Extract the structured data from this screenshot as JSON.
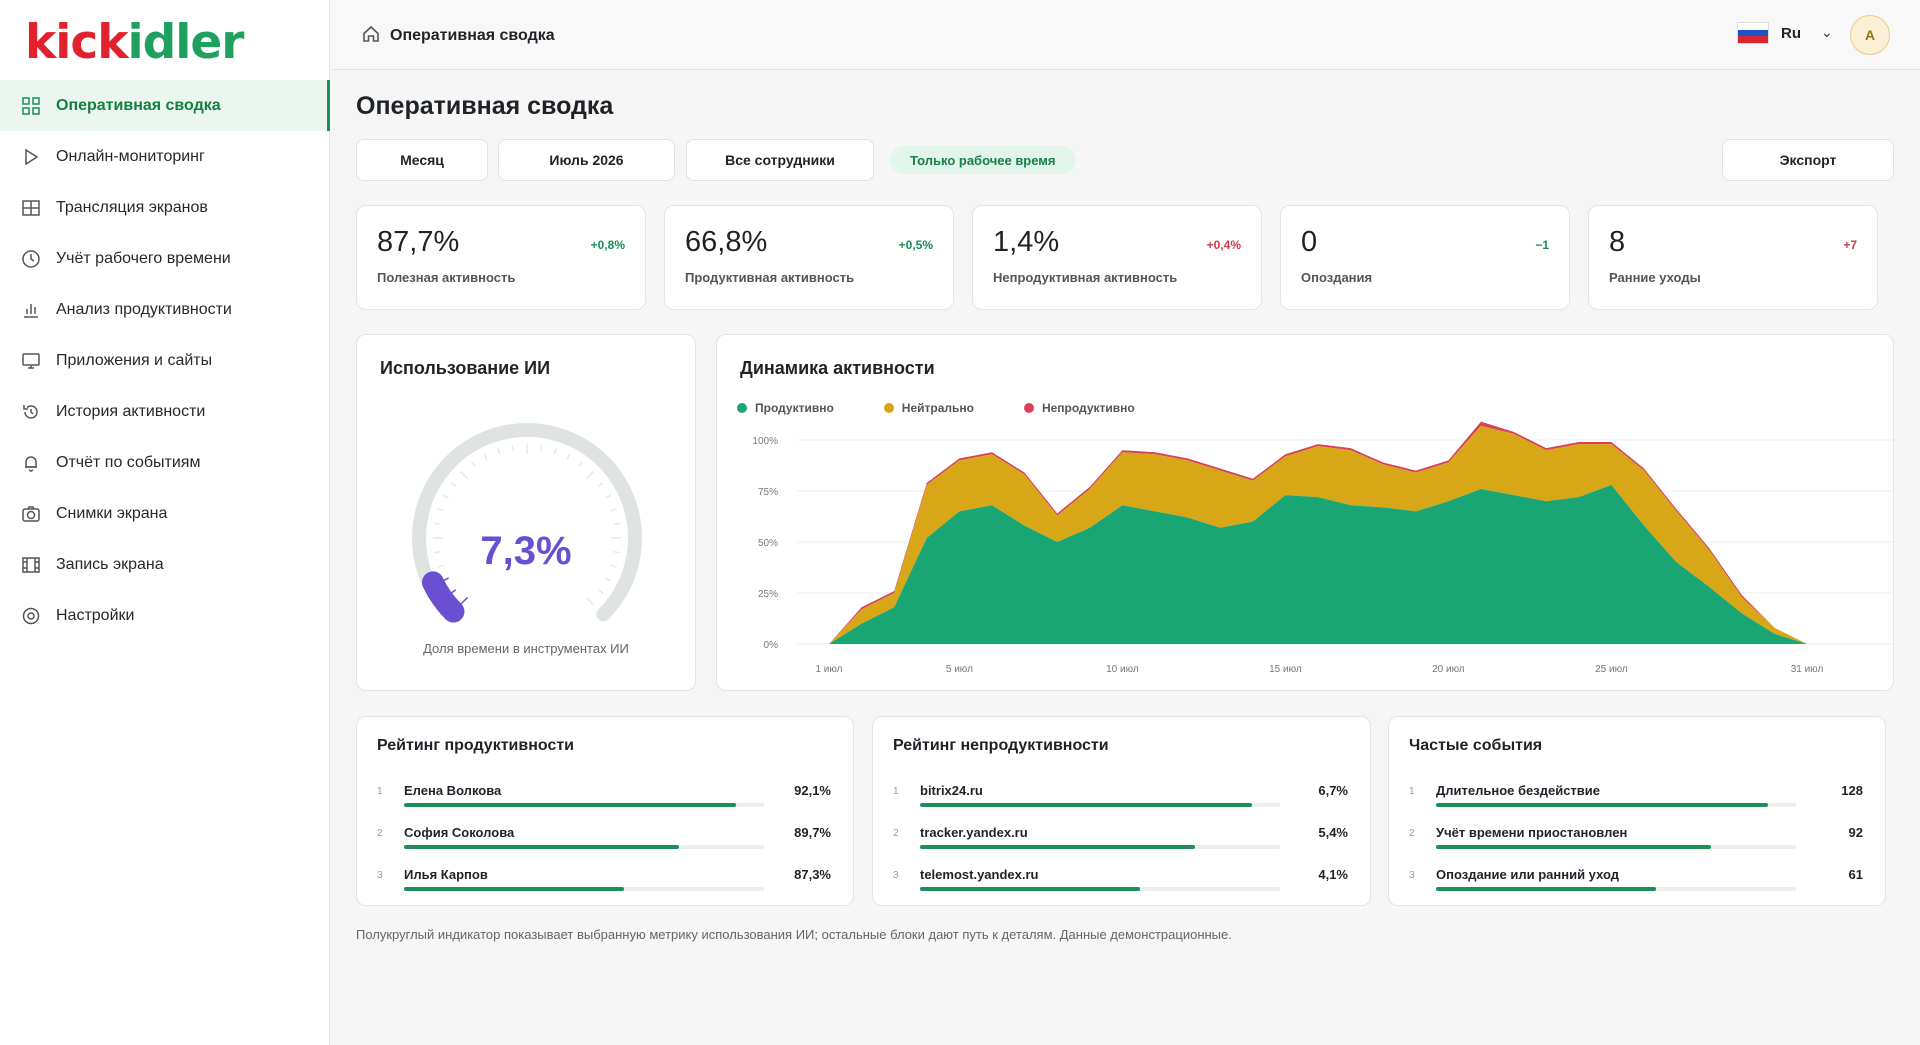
{
  "logo": {
    "part1": "kick",
    "part2": "idler"
  },
  "sidebar": {
    "items": [
      {
        "label": "Оперативная сводка",
        "icon": "dashboard-grid-icon",
        "active": true
      },
      {
        "label": "Онлайн-мониторинг",
        "icon": "play-icon"
      },
      {
        "label": "Трансляция экранов",
        "icon": "table-grid-icon"
      },
      {
        "label": "Учёт рабочего времени",
        "icon": "clock-icon"
      },
      {
        "label": "Анализ продуктивности",
        "icon": "bar-chart-icon"
      },
      {
        "label": "Приложения и сайты",
        "icon": "monitor-icon"
      },
      {
        "label": "История активности",
        "icon": "history-icon"
      },
      {
        "label": "Отчёт по событиям",
        "icon": "bell-icon"
      },
      {
        "label": "Снимки экрана",
        "icon": "camera-icon"
      },
      {
        "label": "Запись экрана",
        "icon": "film-icon"
      },
      {
        "label": "Настройки",
        "icon": "settings-icon"
      }
    ]
  },
  "topbar": {
    "breadcrumb": "Оперативная сводка",
    "language": "Ru",
    "avatar": "A"
  },
  "main": {
    "title": "Оперативная сводка",
    "filters": {
      "period": "Месяц",
      "month": "Июль 2026",
      "employees": "Все сотрудники",
      "work_time_only": "Только рабочее время",
      "export": "Экспорт"
    },
    "kpis": [
      {
        "value": "87,7%",
        "delta": "+0,8%",
        "label": "Полезная активность",
        "tone": "pos"
      },
      {
        "value": "66,8%",
        "delta": "+0,5%",
        "label": "Продуктивная активность",
        "tone": "pos"
      },
      {
        "value": "1,4%",
        "delta": "+0,4%",
        "label": "Непродуктивная активность",
        "tone": "neg"
      },
      {
        "value": "0",
        "delta": "−1",
        "label": "Опоздания",
        "tone": "pos"
      },
      {
        "value": "8",
        "delta": "+7",
        "label": "Ранние уходы",
        "tone": "neg"
      }
    ],
    "ai": {
      "title": "Использование ИИ",
      "value": "7,3%",
      "fraction": 0.073,
      "caption": "Доля времени в инструментах ИИ",
      "color": "#6a4fd3"
    },
    "activity": {
      "title": "Динамика активности"
    },
    "productivity_rank": {
      "title": "Рейтинг продуктивности",
      "rows": [
        {
          "idx": "1",
          "name": "Елена Волкова",
          "value": "92,1%",
          "fill": 0.921
        },
        {
          "idx": "2",
          "name": "София Соколова",
          "value": "89,7%",
          "fill": 0.765
        },
        {
          "idx": "3",
          "name": "Илья Карпов",
          "value": "87,3%",
          "fill": 0.61
        }
      ]
    },
    "unproductive_rank": {
      "title": "Рейтинг непродуктивности",
      "rows": [
        {
          "idx": "1",
          "name": "bitrix24.ru",
          "value": "6,7%",
          "fill": 0.921
        },
        {
          "idx": "2",
          "name": "tracker.yandex.ru",
          "value": "5,4%",
          "fill": 0.765
        },
        {
          "idx": "3",
          "name": "telemost.yandex.ru",
          "value": "4,1%",
          "fill": 0.61
        }
      ]
    },
    "frequent_events": {
      "title": "Частые события",
      "rows": [
        {
          "idx": "1",
          "name": "Длительное бездействие",
          "value": "128",
          "fill": 0.921
        },
        {
          "idx": "2",
          "name": "Учёт времени приостановлен",
          "value": "92",
          "fill": 0.765
        },
        {
          "idx": "3",
          "name": "Опоздание или ранний уход",
          "value": "61",
          "fill": 0.61
        }
      ]
    },
    "footnote": "Полукруглый индикатор показывает выбранную метрику использования ИИ; остальные блоки дают путь к деталям. Данные демонстрационные."
  },
  "chart_data": {
    "type": "area",
    "stacked": true,
    "x": [
      1,
      2,
      3,
      4,
      5,
      6,
      7,
      8,
      9,
      10,
      11,
      12,
      13,
      14,
      15,
      16,
      17,
      18,
      19,
      20,
      21,
      22,
      23,
      24,
      25,
      26,
      27,
      28,
      29,
      30,
      31
    ],
    "xticks": [
      {
        "x": 1,
        "label": "1 июл"
      },
      {
        "x": 5,
        "label": "5 июл"
      },
      {
        "x": 10,
        "label": "10 июл"
      },
      {
        "x": 15,
        "label": "15 июл"
      },
      {
        "x": 20,
        "label": "20 июл"
      },
      {
        "x": 25,
        "label": "25 июл"
      },
      {
        "x": 31,
        "label": "31 июл"
      }
    ],
    "yticks": [
      "0%",
      "25%",
      "50%",
      "75%",
      "100%"
    ],
    "ylim": [
      0,
      100
    ],
    "series": [
      {
        "name": "Продуктивно",
        "color": "#1aa574",
        "values": [
          0,
          10,
          18,
          52,
          65,
          68,
          58,
          50,
          57,
          68,
          65,
          62,
          57,
          60,
          73,
          72,
          68,
          67,
          65,
          70,
          76,
          73,
          70,
          72,
          78,
          58,
          40,
          28,
          15,
          5,
          0
        ]
      },
      {
        "name": "Нейтрально",
        "color": "#d8a717",
        "values": [
          0,
          7,
          7,
          26,
          25,
          25,
          25,
          13,
          19,
          26,
          28,
          28,
          28,
          20,
          19,
          25,
          27,
          21,
          19,
          19,
          31,
          30,
          25,
          26,
          20,
          27,
          25,
          18,
          8,
          3,
          0
        ]
      },
      {
        "name": "Непродуктивно",
        "color": "#d7425a",
        "values": [
          0,
          1,
          1,
          1,
          1,
          1,
          1,
          1,
          1,
          1,
          1,
          1,
          1,
          1,
          1,
          1,
          1,
          1,
          1,
          1,
          2,
          1,
          1,
          1,
          1,
          1,
          1,
          1,
          1,
          0,
          0
        ]
      }
    ],
    "legend": "top-left",
    "grid": true
  }
}
